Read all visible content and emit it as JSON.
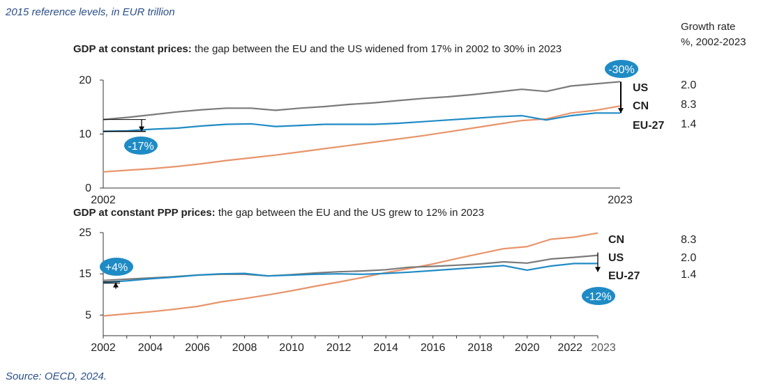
{
  "subtitle": "2015 reference levels, in EUR trillion",
  "source": "Source: OECD, 2024.",
  "growth_header": {
    "line1": "Growth rate",
    "line2": "%, 2002-2023"
  },
  "colors": {
    "US": "#7a7a7a",
    "CN": "#e8946a",
    "EU-27": "#1f8bc5",
    "badge": "#1f8bc5",
    "axis": "#333333"
  },
  "chart_data": [
    {
      "type": "line",
      "title_bold": "GDP at constant prices:",
      "title_rest": " the gap between the EU and the US widened from 17% in 2002 to 30% in 2023",
      "x": [
        2002,
        2003,
        2004,
        2005,
        2006,
        2007,
        2008,
        2009,
        2010,
        2011,
        2012,
        2013,
        2014,
        2015,
        2016,
        2017,
        2018,
        2019,
        2020,
        2021,
        2022,
        2023
      ],
      "x_tick_labels": [
        "2002",
        "2023"
      ],
      "y_ticks": [
        0,
        10,
        20
      ],
      "ylim": [
        0,
        20
      ],
      "series": [
        {
          "name": "US",
          "values": [
            12.7,
            13.1,
            13.6,
            14.1,
            14.5,
            14.8,
            14.8,
            14.4,
            14.8,
            15.1,
            15.5,
            15.8,
            16.2,
            16.6,
            16.9,
            17.3,
            17.8,
            18.3,
            17.9,
            18.9,
            19.3,
            19.7
          ],
          "growth": "2.0"
        },
        {
          "name": "CN",
          "values": [
            3.0,
            3.3,
            3.6,
            4.0,
            4.5,
            5.1,
            5.6,
            6.1,
            6.7,
            7.3,
            7.9,
            8.5,
            9.1,
            9.7,
            10.4,
            11.1,
            11.8,
            12.5,
            12.8,
            13.9,
            14.4,
            15.2
          ],
          "growth": "8.3"
        },
        {
          "name": "EU-27",
          "values": [
            10.5,
            10.6,
            10.9,
            11.1,
            11.5,
            11.8,
            11.9,
            11.4,
            11.6,
            11.8,
            11.8,
            11.8,
            12.0,
            12.3,
            12.6,
            12.9,
            13.2,
            13.4,
            12.6,
            13.4,
            13.9,
            13.9
          ],
          "growth": "1.4"
        }
      ],
      "annotations": [
        {
          "text": "-17%",
          "year": 2002
        },
        {
          "text": "-30%",
          "year": 2023
        }
      ]
    },
    {
      "type": "line",
      "title_bold": "GDP at constant PPP prices:",
      "title_rest": " the gap between the EU and the US grew to 12% in 2023",
      "x": [
        2002,
        2003,
        2004,
        2005,
        2006,
        2007,
        2008,
        2009,
        2010,
        2011,
        2012,
        2013,
        2014,
        2015,
        2016,
        2017,
        2018,
        2019,
        2020,
        2021,
        2022,
        2023
      ],
      "x_tick_labels": [
        "2002",
        "2004",
        "2006",
        "2008",
        "2010",
        "2012",
        "2014",
        "2016",
        "2018",
        "2020",
        "2022",
        "2023"
      ],
      "y_ticks": [
        5,
        15,
        25
      ],
      "ylim": [
        0,
        25
      ],
      "series": [
        {
          "name": "CN",
          "values": [
            4.8,
            5.3,
            5.8,
            6.4,
            7.1,
            8.2,
            9.0,
            9.9,
            10.9,
            12.0,
            13.0,
            14.1,
            15.3,
            16.3,
            17.4,
            18.7,
            19.9,
            21.1,
            21.6,
            23.4,
            23.9,
            24.9
          ],
          "growth": "8.3"
        },
        {
          "name": "US",
          "values": [
            13.4,
            13.7,
            14.0,
            14.3,
            14.7,
            14.9,
            14.9,
            14.5,
            14.8,
            15.2,
            15.5,
            15.7,
            16.0,
            16.6,
            16.8,
            17.1,
            17.4,
            17.9,
            17.6,
            18.6,
            19.0,
            19.5
          ],
          "growth": "2.0"
        },
        {
          "name": "EU-27",
          "values": [
            12.9,
            13.3,
            13.8,
            14.2,
            14.7,
            15.0,
            15.1,
            14.5,
            14.7,
            14.9,
            15.0,
            14.9,
            15.1,
            15.4,
            15.8,
            16.2,
            16.6,
            17.0,
            15.9,
            16.9,
            17.5,
            17.5
          ],
          "growth": "1.4"
        }
      ],
      "annotations": [
        {
          "text": "+4%",
          "year": 2002
        },
        {
          "text": "-12%",
          "year": 2023
        }
      ]
    }
  ]
}
